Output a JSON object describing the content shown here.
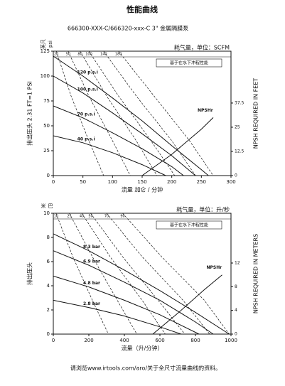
{
  "header": {
    "title": "性能曲线",
    "subtitle": "666300-XXX-C/666320-xxx-C 3\" 金属隔膜泵"
  },
  "footer": "请浏览www.irtools.com/aro/关于全尺寸流量曲线的资料。",
  "chart_data": [
    {
      "type": "line",
      "x_label": "流量 加仑 / 分钟",
      "y_label": "排出压头 2.31 FT=1 PSI",
      "unit_labels": [
        "英尺",
        "psi"
      ],
      "y2_label": "NPSH REQUIRED IN FEET",
      "air_label": "耗气量，单位：SCFM",
      "note": "基于在水下冲程性能",
      "xlim": [
        0,
        300
      ],
      "xticks": [
        0,
        50,
        100,
        150,
        200,
        250,
        300
      ],
      "ylim": [
        0,
        125
      ],
      "yticks": [
        0,
        25,
        50,
        75,
        100,
        125
      ],
      "y2lim": [
        0,
        64.3
      ],
      "y2ticks": [
        0,
        12.5,
        25,
        37.5
      ],
      "series": [
        {
          "name": "120 p.s.i",
          "color": "#111",
          "x": [
            0,
            50,
            100,
            150,
            200,
            250,
            262
          ],
          "values": [
            120,
            100,
            78,
            55,
            30,
            6,
            0
          ]
        },
        {
          "name": "100 p.s.i",
          "color": "#111",
          "x": [
            0,
            50,
            100,
            150,
            200,
            240
          ],
          "values": [
            100,
            83,
            63,
            42,
            20,
            0
          ]
        },
        {
          "name": "70 p.s.i",
          "color": "#111",
          "x": [
            0,
            50,
            100,
            150,
            200,
            220
          ],
          "values": [
            70,
            58,
            43,
            27,
            9,
            0
          ]
        },
        {
          "name": "40 p.s.i",
          "color": "#111",
          "x": [
            0,
            50,
            100,
            150,
            190
          ],
          "values": [
            40,
            33,
            23,
            11,
            0
          ]
        },
        {
          "name": "NPSHr",
          "color": "#111",
          "axis": "y2",
          "x": [
            150,
            200,
            250,
            270
          ],
          "values": [
            0,
            11,
            24,
            30
          ]
        }
      ],
      "air_curves": [
        {
          "name": "20",
          "x": [
            5,
            30,
            60,
            85
          ],
          "values": [
            125,
            80,
            35,
            0
          ]
        },
        {
          "name": "50",
          "x": [
            25,
            60,
            100,
            130
          ],
          "values": [
            125,
            80,
            35,
            0
          ]
        },
        {
          "name": "80",
          "x": [
            45,
            90,
            140,
            175
          ],
          "values": [
            125,
            80,
            35,
            0
          ]
        },
        {
          "name": "100",
          "x": [
            60,
            110,
            165,
            205
          ],
          "values": [
            125,
            80,
            35,
            0
          ]
        },
        {
          "name": "140",
          "x": [
            85,
            140,
            200,
            240
          ],
          "values": [
            125,
            80,
            35,
            0
          ]
        },
        {
          "name": "180",
          "x": [
            110,
            170,
            230,
            270
          ],
          "values": [
            125,
            80,
            35,
            0
          ]
        }
      ]
    },
    {
      "type": "line",
      "x_label": "流量（升/分钟）",
      "y_label": "排出压头",
      "unit_labels": [
        "米",
        "巴"
      ],
      "y2_label": "NPSH REQUIRED IN METERS",
      "air_label": "耗气量，单位：升/秒",
      "note": "基于在水下冲程性能",
      "xlim": [
        0,
        1000
      ],
      "xticks": [
        0,
        200,
        400,
        600,
        800,
        1000
      ],
      "ylim": [
        0,
        10
      ],
      "yticks": [
        0,
        2,
        4,
        6,
        8,
        10
      ],
      "y2lim": [
        0,
        20.4
      ],
      "y2ticks": [
        0,
        4,
        8,
        12
      ],
      "series": [
        {
          "name": "8.3 bar",
          "color": "#111",
          "x": [
            0,
            200,
            400,
            600,
            800,
            990
          ],
          "values": [
            8.3,
            6.9,
            5.3,
            3.6,
            1.8,
            0
          ]
        },
        {
          "name": "6.9 bar",
          "color": "#111",
          "x": [
            0,
            200,
            400,
            600,
            800,
            900
          ],
          "values": [
            6.9,
            5.7,
            4.3,
            2.8,
            1.0,
            0
          ]
        },
        {
          "name": "4.8 bar",
          "color": "#111",
          "x": [
            0,
            200,
            400,
            600,
            820
          ],
          "values": [
            4.8,
            3.9,
            2.8,
            1.6,
            0
          ]
        },
        {
          "name": "2.8 bar",
          "color": "#111",
          "x": [
            0,
            200,
            400,
            600,
            720
          ],
          "values": [
            2.8,
            2.2,
            1.5,
            0.6,
            0
          ]
        },
        {
          "name": "NPSHr",
          "color": "#111",
          "axis": "y2",
          "x": [
            560,
            700,
            850,
            950
          ],
          "values": [
            0,
            3.5,
            7.5,
            10
          ]
        }
      ],
      "air_curves": [
        {
          "name": "10",
          "x": [
            15,
            110,
            220,
            310
          ],
          "values": [
            10,
            6.4,
            2.8,
            0
          ]
        },
        {
          "name": "25",
          "x": [
            90,
            220,
            360,
            470
          ],
          "values": [
            10,
            6.4,
            2.8,
            0
          ]
        },
        {
          "name": "40",
          "x": [
            160,
            320,
            500,
            630
          ],
          "values": [
            10,
            6.4,
            2.8,
            0
          ]
        },
        {
          "name": "50",
          "x": [
            210,
            390,
            590,
            740
          ],
          "values": [
            10,
            6.4,
            2.8,
            0
          ]
        },
        {
          "name": "70",
          "x": [
            300,
            500,
            730,
            880
          ],
          "values": [
            10,
            6.4,
            2.8,
            0
          ]
        },
        {
          "name": "90",
          "x": [
            390,
            610,
            850,
            990
          ],
          "values": [
            10,
            6.4,
            2.8,
            0
          ]
        }
      ]
    }
  ]
}
